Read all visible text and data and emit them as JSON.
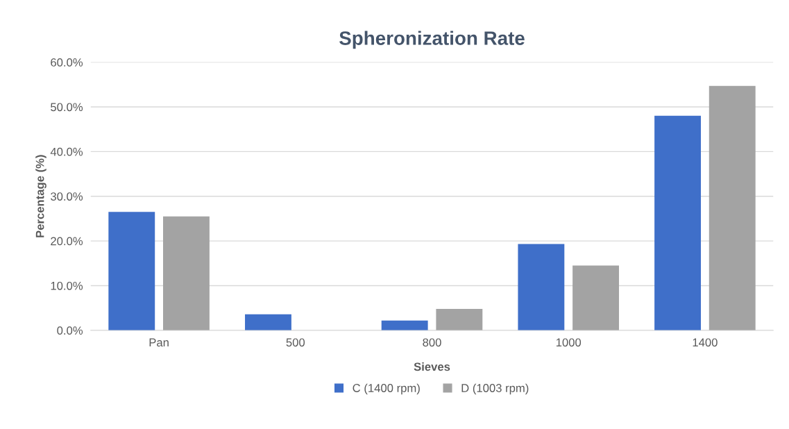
{
  "chart_data": {
    "type": "bar",
    "title": "Spheronization Rate",
    "xlabel": "Sieves",
    "ylabel": "Percentage (%)",
    "categories": [
      "Pan",
      "500",
      "800",
      "1000",
      "1400"
    ],
    "series": [
      {
        "name": "C (1400 rpm)",
        "color": "#3f6fc9",
        "values": [
          26.5,
          3.6,
          2.2,
          19.3,
          48.0
        ]
      },
      {
        "name": "D (1003 rpm)",
        "color": "#a3a3a3",
        "values": [
          25.5,
          0,
          4.8,
          14.5,
          54.7
        ]
      }
    ],
    "ylim": [
      0,
      60
    ],
    "yticks": [
      {
        "value": 0,
        "label": "0.0%"
      },
      {
        "value": 10,
        "label": "10.0%"
      },
      {
        "value": 20,
        "label": "20.0%"
      },
      {
        "value": 30,
        "label": "30.0%"
      },
      {
        "value": 40,
        "label": "40.0%"
      },
      {
        "value": 50,
        "label": "50.0%"
      },
      {
        "value": 60,
        "label": "60.0%"
      }
    ],
    "grid": "y",
    "legend": "bottom"
  }
}
